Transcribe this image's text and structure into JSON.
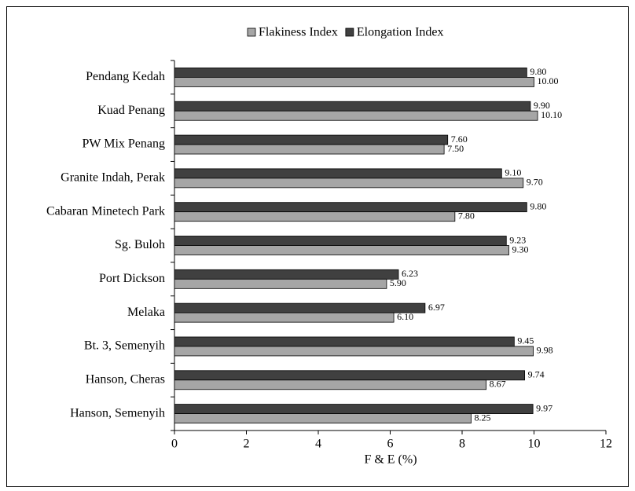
{
  "chart_data": {
    "type": "hbar",
    "xlabel": "F & E (%)",
    "categories": [
      "Pendang Kedah",
      "Kuad Penang",
      "PW Mix Penang",
      "Granite Indah, Perak",
      "Cabaran Minetech Park",
      "Sg. Buloh",
      "Port Dickson",
      "Melaka",
      "Bt. 3, Semenyih",
      "Hanson, Cheras",
      "Hanson, Semenyih"
    ],
    "series": [
      {
        "name": "Flakiness Index",
        "color": "#a6a6a6",
        "values": [
          10.0,
          10.1,
          7.5,
          9.7,
          7.8,
          9.3,
          5.9,
          6.1,
          9.98,
          8.67,
          8.25
        ],
        "value_labels": [
          "10.00",
          "10.10",
          "7.50",
          "9.70",
          "7.80",
          "9.30",
          "5.90",
          "6.10",
          "9.98",
          "8.67",
          "8.25"
        ]
      },
      {
        "name": "Elongation Index",
        "color": "#404040",
        "values": [
          9.8,
          9.9,
          7.6,
          9.1,
          9.8,
          9.23,
          6.23,
          6.97,
          9.45,
          9.74,
          9.97
        ],
        "value_labels": [
          "9.80",
          "9.90",
          "7.60",
          "9.10",
          "9.80",
          "9.23",
          "6.23",
          "6.97",
          "9.45",
          "9.74",
          "9.97"
        ]
      }
    ],
    "xlim": [
      0,
      12
    ],
    "xticks": [
      0,
      2,
      4,
      6,
      8,
      10,
      12
    ],
    "legend": "top"
  }
}
